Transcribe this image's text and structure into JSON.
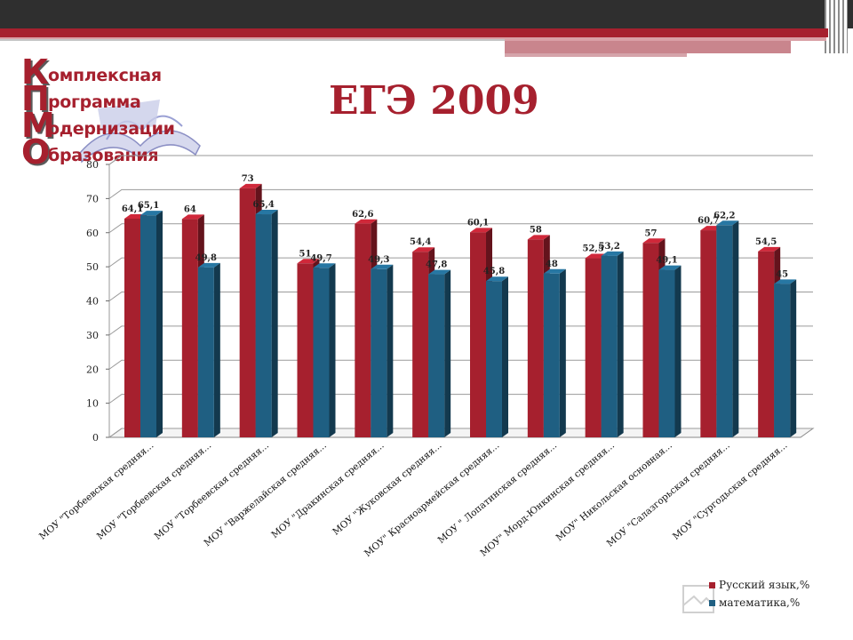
{
  "slide": {
    "title": "ЕГЭ 2009",
    "colors": {
      "brand_red": "#a6202e",
      "header_dark": "#2f2f2f"
    }
  },
  "logo": {
    "lines": [
      {
        "cap": "К",
        "rest": "омплексная"
      },
      {
        "cap": "П",
        "rest": "рограмма"
      },
      {
        "cap": "М",
        "rest": "одернизации"
      },
      {
        "cap": "О",
        "rest": "бразования"
      }
    ],
    "icon": "open-book-icon"
  },
  "chart_data": {
    "type": "bar",
    "title": "ЕГЭ 2009",
    "xlabel": "",
    "ylabel": "",
    "ylim": [
      0,
      80
    ],
    "yticks": [
      0,
      10,
      20,
      30,
      40,
      50,
      60,
      70,
      80
    ],
    "grid": true,
    "legend_position": "bottom-right",
    "categories": [
      "МОУ \"Торбеевская средняя...",
      "МОУ \"Торбеевская средняя...",
      "МОУ \"Торбеевская средняя...",
      "МОУ \"Варжелайская средняя...",
      "МОУ \"Дракинская средняя...",
      "МОУ \"Жуковская средняя...",
      "МОУ\" Красноармейская средняя...",
      "МОУ \" Лопатинская средняя...",
      "МОУ\" Морд-Юнкинская средняя...",
      "МОУ\" Никольская основная...",
      "МОУ \"Салазгорьская средняя...",
      "МОУ \"Сургодьская средняя..."
    ],
    "series": [
      {
        "name": "Русский язык,%",
        "color": "#a6202e",
        "values": [
          64.1,
          64,
          73,
          51,
          62.6,
          54.4,
          60.1,
          58,
          52.5,
          57,
          60.7,
          54.5
        ],
        "labels": [
          "64,1",
          "64",
          "73",
          "51",
          "62,6",
          "54,4",
          "60,1",
          "58",
          "52,5",
          "57",
          "60,7",
          "54,5"
        ]
      },
      {
        "name": "математика,%",
        "color": "#1f5f82",
        "values": [
          65.1,
          49.8,
          65.4,
          49.7,
          49.3,
          47.8,
          45.8,
          48,
          53.2,
          49.1,
          62.2,
          45
        ],
        "labels": [
          "65,1",
          "49,8",
          "65,4",
          "49,7",
          "49,3",
          "47,8",
          "45,8",
          "48",
          "53,2",
          "49,1",
          "62,2",
          "45"
        ]
      }
    ]
  }
}
